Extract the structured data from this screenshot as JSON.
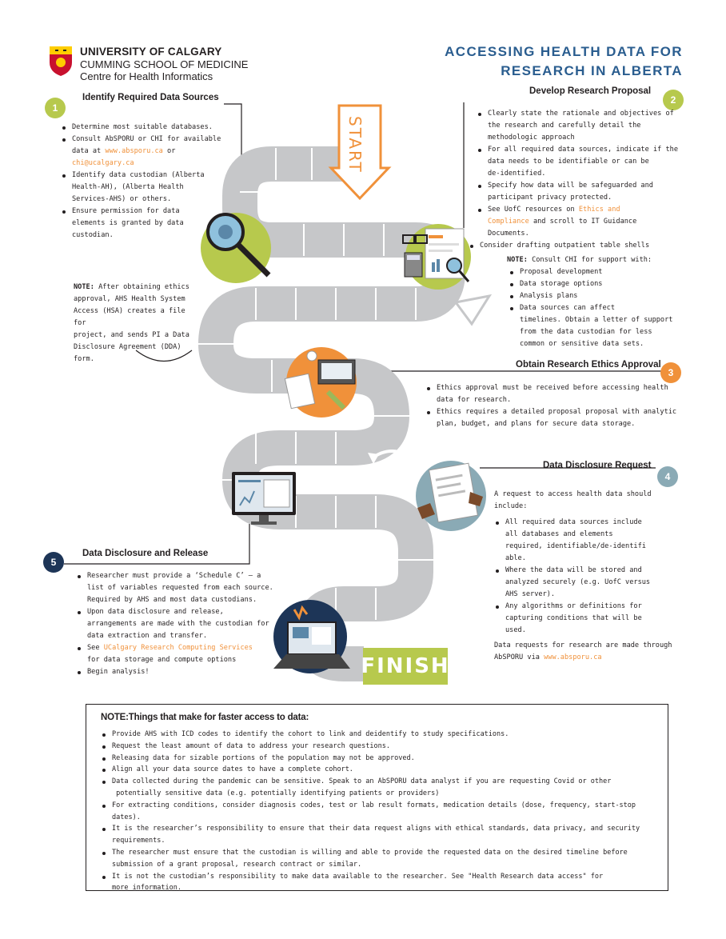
{
  "header": {
    "university": "UNIVERSITY OF CALGARY",
    "school": "CUMMING SCHOOL OF MEDICINE",
    "centre": "Centre for Health Informatics",
    "title_line1": "ACCESSING HEALTH DATA FOR",
    "title_line2": "RESEARCH IN ALBERTA"
  },
  "path": {
    "start_label": "START",
    "finish_label": "FINISH"
  },
  "step1": {
    "number": "1",
    "title": "Identify Required Data Sources",
    "items": [
      "Determine most suitable databases.",
      "Consult AbSPORU or CHI for available",
      "data at",
      "www.absporu.ca",
      "or",
      "chi@ucalgary.ca",
      "Identify data custodian (Alberta",
      "Health-AH), (Alberta Health",
      "Services-AHS) or others.",
      "Ensure permission for data",
      "elements is granted by data",
      "custodian."
    ]
  },
  "note_hsa": {
    "label": "NOTE:",
    "lines": [
      "After obtaining ethics",
      "approval, AHS Health System",
      "Access (HSA) creates a file for",
      "project, and sends PI a Data",
      "Disclosure Agreement (DDA)",
      "form."
    ]
  },
  "step2": {
    "number": "2",
    "title": "Develop Research Proposal",
    "b1": [
      "Clearly state the rationale and objectives of",
      "the research and carefully detail the",
      "methodologic approach"
    ],
    "b2": [
      "For all required data sources, indicate if the",
      "data needs to be identifiable or can be",
      "de-identified."
    ],
    "b3": [
      "Specify how data will be safeguarded and",
      "participant privacy protected."
    ],
    "b4_pre": "See UofC resources on",
    "b4_link1": "Ethics and",
    "b4_link2": "Compliance",
    "b4_post": "and scroll to IT Guidance",
    "b4_post2": "Documents.",
    "b5": "Consider drafting outpatient table shells",
    "note_label": "NOTE:",
    "note_text": "Consult CHI for support with:",
    "note_items": [
      "Proposal development",
      "Data storage options",
      "Analysis plans"
    ],
    "note_item4": [
      "Data sources can affect",
      "timelines. Obtain a letter of support",
      "from the data custodian for less",
      "common or sensitive data sets."
    ]
  },
  "step3": {
    "number": "3",
    "title": "Obtain Research Ethics Approval",
    "b1": [
      "Ethics approval must be received before accessing  health",
      "data for research."
    ],
    "b2": [
      "Ethics requires a detailed proposal proposal with analytic",
      "plan, budget, and plans for secure data storage."
    ]
  },
  "step4": {
    "number": "4",
    "title": "Data Disclosure Request",
    "intro": [
      "A request to access health data should",
      "include:"
    ],
    "b1": [
      "All required data sources include",
      "all databases and elements",
      "required, identifiable/de-identifi",
      "able."
    ],
    "b2": [
      "Where the data will be stored and",
      "analyzed securely (e.g. UofC versus",
      "AHS server)."
    ],
    "b3": [
      "Any algorithms or definitions for",
      "capturing conditions that will be",
      "used."
    ],
    "footer1": "Data requests for research are made through",
    "footer2_pre": "AbSPORU via",
    "footer2_link": "www.absporu.ca"
  },
  "step5": {
    "number": "5",
    "title": "Data Disclosure and Release",
    "b1": [
      "Researcher must provide a ‘Schedule C’ – a",
      "list of variables requested from each source.",
      "Required by AHS and most data custodians."
    ],
    "b2": [
      "Upon data disclosure and release,",
      "arrangements are made with the custodian for",
      "data extraction and transfer."
    ],
    "b3_pre": "See",
    "b3_link": "UCalgary Research Computing Services",
    "b3_post": "for data storage and compute options",
    "b4": "Begin analysis!"
  },
  "bottom": {
    "title": "NOTE:Things that make for faster access to data:",
    "items": [
      [
        "Provide AHS with ICD codes to identify the cohort to link and deidentify to study specifications."
      ],
      [
        "Request the least amount of data to address your research questions."
      ],
      [
        "Releasing data for sizable portions of the population may not be approved."
      ],
      [
        "Align all your data source dates to have a  complete cohort."
      ],
      [
        "Data collected during the pandemic can be sensitive. Speak to an AbSPORU data analyst if you are requesting Covid or other",
        "potentially sensitive data (e.g. potentially identifying patients or providers)"
      ],
      [
        "For extracting conditions, consider diagnosis codes, test or lab result formats, medication details (dose, frequency, start-stop dates)."
      ],
      [
        "It is the researcher’s responsibility to ensure that their data request aligns with ethical standards, data privacy, and security",
        "requirements."
      ],
      [
        "The researcher must ensure that the custodian is willing and able to provide the requested data on the desired timeline before",
        "submission of a grant proposal, research contract or similar."
      ],
      [
        "It is not the custodian’s responsibility  to make data available to the researcher. See \"Health Research data access\" for",
        "more information."
      ]
    ]
  },
  "colors": {
    "green": "#b7c94d",
    "orange": "#f0913a",
    "blue": "#2a5d8f",
    "gray_path": "#c6c7c9",
    "teal": "#8aaab5",
    "navy": "#1d3557"
  }
}
